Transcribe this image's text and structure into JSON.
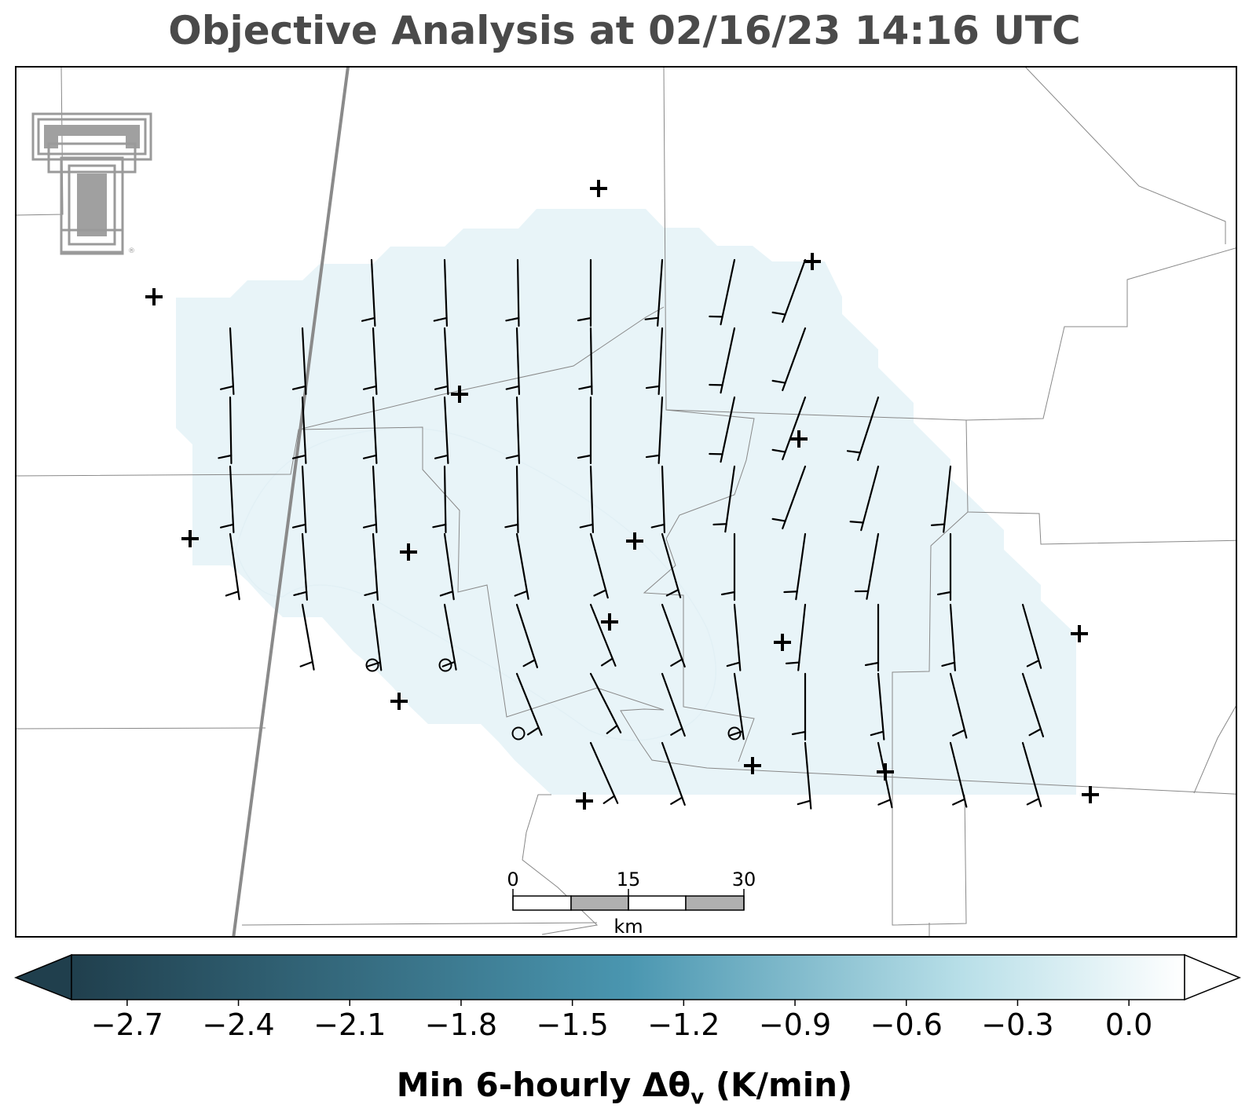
{
  "title": "Objective Analysis at 02/16/23 14:16 UTC",
  "colorbar": {
    "label_main": "Min 6-hourly Δθ",
    "label_sub": "v",
    "label_units": " (K/min)",
    "ticks": [
      "−2.7",
      "−2.4",
      "−2.1",
      "−1.8",
      "−1.5",
      "−1.2",
      "−0.9",
      "−0.6",
      "−0.3",
      "0.0"
    ],
    "tick_values": [
      -2.7,
      -2.4,
      -2.1,
      -1.8,
      -1.5,
      -1.2,
      -0.9,
      -0.6,
      -0.3,
      0.0
    ],
    "range": [
      -2.85,
      0.15
    ],
    "color_low": "#203f4d",
    "color_mid": "#4a96b0",
    "color_light": "#b8dfe8",
    "color_high": "#ffffff",
    "extend": "both"
  },
  "scale_bar": {
    "labels": [
      "0",
      "15",
      "30"
    ],
    "units": "km"
  },
  "logo": {
    "name": "Texas Tech double-T logo"
  },
  "field": {
    "analysis_fill_color": "#e8f4f8",
    "analysis_inner_color": "#e2f0f5"
  },
  "stations_plus": [
    [
      196,
      378
    ],
    [
      762,
      240
    ],
    [
      1034,
      333
    ],
    [
      242,
      686
    ],
    [
      520,
      703
    ],
    [
      585,
      502
    ],
    [
      1017,
      559
    ],
    [
      808,
      689
    ],
    [
      776,
      792
    ],
    [
      996,
      818
    ],
    [
      1374,
      807
    ],
    [
      508,
      893
    ],
    [
      958,
      975
    ],
    [
      1127,
      983
    ],
    [
      744,
      1020
    ],
    [
      1388,
      1012
    ]
  ],
  "stations_circle": [
    [
      474,
      847
    ],
    [
      567,
      847
    ],
    [
      660,
      934
    ],
    [
      935,
      934
    ]
  ],
  "barbs": [
    [
      473,
      331,
      -3
    ],
    [
      566,
      331,
      -2
    ],
    [
      659,
      331,
      -1
    ],
    [
      752,
      331,
      0
    ],
    [
      843,
      331,
      4
    ],
    [
      935,
      331,
      12
    ],
    [
      1025,
      331,
      20
    ],
    [
      293,
      418,
      -3
    ],
    [
      385,
      418,
      -3
    ],
    [
      475,
      418,
      -3
    ],
    [
      566,
      418,
      -3
    ],
    [
      658,
      418,
      -2
    ],
    [
      752,
      418,
      -1
    ],
    [
      843,
      418,
      3
    ],
    [
      935,
      418,
      12
    ],
    [
      1025,
      418,
      20
    ],
    [
      293,
      506,
      -1
    ],
    [
      385,
      506,
      -3
    ],
    [
      475,
      506,
      -3
    ],
    [
      566,
      506,
      -3
    ],
    [
      658,
      506,
      -2
    ],
    [
      752,
      506,
      0
    ],
    [
      843,
      506,
      3
    ],
    [
      935,
      506,
      12
    ],
    [
      1025,
      506,
      20
    ],
    [
      1118,
      506,
      18
    ],
    [
      293,
      594,
      -3
    ],
    [
      385,
      594,
      -3
    ],
    [
      475,
      594,
      -3
    ],
    [
      566,
      594,
      -1
    ],
    [
      658,
      594,
      -1
    ],
    [
      752,
      594,
      -2
    ],
    [
      843,
      594,
      -2
    ],
    [
      935,
      594,
      8
    ],
    [
      1025,
      594,
      20
    ],
    [
      1118,
      594,
      15
    ],
    [
      1210,
      594,
      6
    ],
    [
      293,
      680,
      -8
    ],
    [
      385,
      680,
      -4
    ],
    [
      475,
      680,
      -4
    ],
    [
      566,
      680,
      -8
    ],
    [
      658,
      680,
      -10
    ],
    [
      752,
      680,
      -15
    ],
    [
      843,
      680,
      -16
    ],
    [
      935,
      680,
      0
    ],
    [
      1025,
      680,
      8
    ],
    [
      1118,
      680,
      10
    ],
    [
      1210,
      680,
      0
    ],
    [
      385,
      770,
      -10
    ],
    [
      475,
      770,
      -7
    ],
    [
      566,
      770,
      -10
    ],
    [
      658,
      770,
      -18
    ],
    [
      752,
      770,
      -22
    ],
    [
      843,
      770,
      -20
    ],
    [
      935,
      770,
      -5
    ],
    [
      1025,
      770,
      6
    ],
    [
      1118,
      770,
      0
    ],
    [
      1210,
      770,
      -4
    ],
    [
      1302,
      770,
      -16
    ],
    [
      658,
      858,
      -22
    ],
    [
      752,
      858,
      -27
    ],
    [
      843,
      858,
      -20
    ],
    [
      935,
      858,
      -8
    ],
    [
      1025,
      858,
      0
    ],
    [
      1118,
      858,
      -5
    ],
    [
      1210,
      858,
      -14
    ],
    [
      1302,
      858,
      -18
    ],
    [
      752,
      946,
      -24
    ],
    [
      843,
      946,
      -20
    ],
    [
      1025,
      946,
      -5
    ],
    [
      1118,
      946,
      -12
    ],
    [
      1210,
      946,
      -14
    ],
    [
      1302,
      946,
      -16
    ]
  ]
}
